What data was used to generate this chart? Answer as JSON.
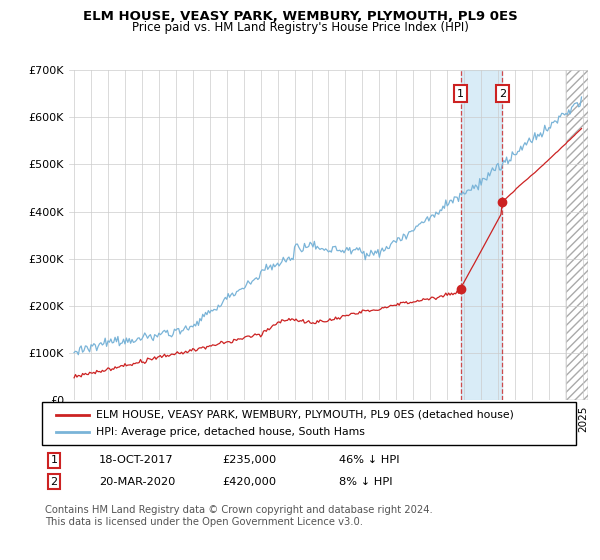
{
  "title": "ELM HOUSE, VEASY PARK, WEMBURY, PLYMOUTH, PL9 0ES",
  "subtitle": "Price paid vs. HM Land Registry's House Price Index (HPI)",
  "ylim": [
    0,
    700000
  ],
  "yticks": [
    0,
    100000,
    200000,
    300000,
    400000,
    500000,
    600000,
    700000
  ],
  "ytick_labels": [
    "£0",
    "£100K",
    "£200K",
    "£300K",
    "£400K",
    "£500K",
    "£600K",
    "£700K"
  ],
  "hpi_color": "#7ab4d8",
  "price_color": "#cc2222",
  "shaded_region_color": "#d0e8f5",
  "legend_entry_1": "ELM HOUSE, VEASY PARK, WEMBURY, PLYMOUTH, PL9 0ES (detached house)",
  "legend_entry_2": "HPI: Average price, detached house, South Hams",
  "sale_1_date": "18-OCT-2017",
  "sale_1_price": "£235,000",
  "sale_1_hpi": "46% ↓ HPI",
  "sale_2_date": "20-MAR-2020",
  "sale_2_price": "£420,000",
  "sale_2_hpi": "8% ↓ HPI",
  "footnote": "Contains HM Land Registry data © Crown copyright and database right 2024.\nThis data is licensed under the Open Government Licence v3.0.",
  "bg_color": "#ffffff",
  "grid_color": "#cccccc",
  "sale1_year": 2017.8,
  "sale2_year": 2020.25,
  "sale1_price_val": 235000,
  "sale2_price_val": 420000,
  "xmin": 1994.7,
  "xmax": 2025.3,
  "hatch_start": 2024.0
}
